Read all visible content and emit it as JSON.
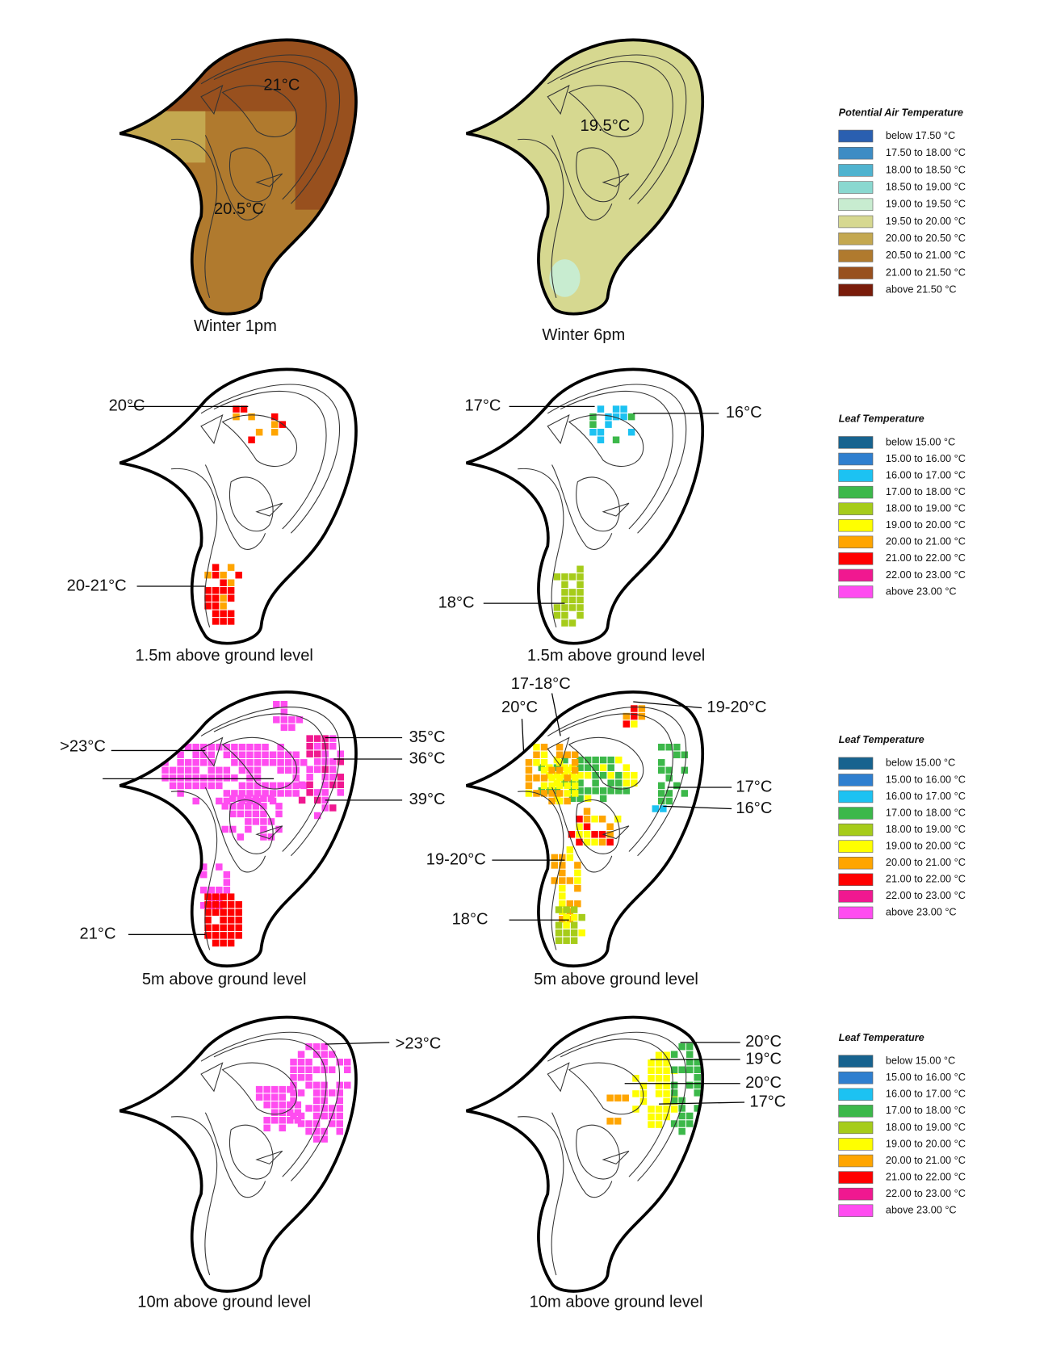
{
  "panels": [
    {
      "caption": "Winter 1pm",
      "labels": [
        "21°C",
        "20.5°C"
      ]
    },
    {
      "caption": "Winter 6pm",
      "labels": [
        "19.5°C"
      ]
    },
    {
      "caption": "1.5m above ground level",
      "labels": [
        "20°C",
        "20-21°C"
      ]
    },
    {
      "caption": "1.5m above ground level",
      "labels": [
        "17°C",
        "16°C",
        "18°C"
      ]
    },
    {
      "caption": "5m above ground level",
      "labels": [
        ">23°C",
        "35°C",
        "36°C",
        "39°C",
        "21°C"
      ]
    },
    {
      "caption": "5m above ground level",
      "labels": [
        "17-18°C",
        "20°C",
        "19-20°C",
        "17°C",
        "16°C",
        "19-20°C",
        "18°C"
      ]
    },
    {
      "caption": "10m above ground level",
      "labels": [
        ">23°C"
      ]
    },
    {
      "caption": "10m above ground level",
      "labels": [
        "20°C",
        "19°C",
        "20°C",
        "17°C"
      ]
    }
  ],
  "legends": [
    {
      "title": "Potential Air Temperature",
      "entries": [
        {
          "label": "below 17.50 °C",
          "color": "#2a5fb0"
        },
        {
          "label": "17.50 to 18.00 °C",
          "color": "#3e8cc4"
        },
        {
          "label": "18.00 to 18.50 °C",
          "color": "#4fb3cf"
        },
        {
          "label": "18.50 to 19.00 °C",
          "color": "#8ad8d0"
        },
        {
          "label": "19.00 to 19.50 °C",
          "color": "#c8ecd0"
        },
        {
          "label": "19.50 to 20.00 °C",
          "color": "#d6d890"
        },
        {
          "label": "20.00 to 20.50 °C",
          "color": "#c4a850"
        },
        {
          "label": "20.50 to 21.00 °C",
          "color": "#b07a2e"
        },
        {
          "label": "21.00 to 21.50 °C",
          "color": "#98501e"
        },
        {
          "label": "above 21.50 °C",
          "color": "#7a1c0a"
        }
      ]
    },
    {
      "title": "Leaf Temperature",
      "entries": [
        {
          "label": "below 15.00 °C",
          "color": "#17638f"
        },
        {
          "label": "15.00 to 16.00 °C",
          "color": "#2f7fcf"
        },
        {
          "label": "16.00 to 17.00 °C",
          "color": "#1cc2f2"
        },
        {
          "label": "17.00 to 18.00 °C",
          "color": "#3cb84a"
        },
        {
          "label": "18.00 to 19.00 °C",
          "color": "#a6cc1a"
        },
        {
          "label": "19.00 to 20.00 °C",
          "color": "#ffff00"
        },
        {
          "label": "20.00 to 21.00 °C",
          "color": "#ffa500"
        },
        {
          "label": "21.00 to 22.00 °C",
          "color": "#ff0000"
        },
        {
          "label": "22.00 to 23.00 °C",
          "color": "#f01890"
        },
        {
          "label": "above 23.00 °C",
          "color": "#ff4cf0"
        }
      ]
    },
    {
      "title": "Leaf Temperature",
      "entries": [
        {
          "label": "below 15.00 °C",
          "color": "#17638f"
        },
        {
          "label": "15.00 to 16.00 °C",
          "color": "#2f7fcf"
        },
        {
          "label": "16.00 to 17.00 °C",
          "color": "#1cc2f2"
        },
        {
          "label": "17.00 to 18.00 °C",
          "color": "#3cb84a"
        },
        {
          "label": "18.00 to 19.00 °C",
          "color": "#a6cc1a"
        },
        {
          "label": "19.00 to 20.00 °C",
          "color": "#ffff00"
        },
        {
          "label": "20.00 to 21.00 °C",
          "color": "#ffa500"
        },
        {
          "label": "21.00 to 22.00 °C",
          "color": "#ff0000"
        },
        {
          "label": "22.00 to 23.00 °C",
          "color": "#f01890"
        },
        {
          "label": "above 23.00 °C",
          "color": "#ff4cf0"
        }
      ]
    },
    {
      "title": "Leaf Temperature",
      "entries": [
        {
          "label": "below 15.00 °C",
          "color": "#17638f"
        },
        {
          "label": "15.00 to 16.00 °C",
          "color": "#2f7fcf"
        },
        {
          "label": "16.00 to 17.00 °C",
          "color": "#1cc2f2"
        },
        {
          "label": "17.00 to 18.00 °C",
          "color": "#3cb84a"
        },
        {
          "label": "18.00 to 19.00 °C",
          "color": "#a6cc1a"
        },
        {
          "label": "19.00 to 20.00 °C",
          "color": "#ffff00"
        },
        {
          "label": "20.00 to 21.00 °C",
          "color": "#ffa500"
        },
        {
          "label": "21.00 to 22.00 °C",
          "color": "#ff0000"
        },
        {
          "label": "22.00 to 23.00 °C",
          "color": "#f01890"
        },
        {
          "label": "above 23.00 °C",
          "color": "#ff4cf0"
        }
      ]
    }
  ]
}
